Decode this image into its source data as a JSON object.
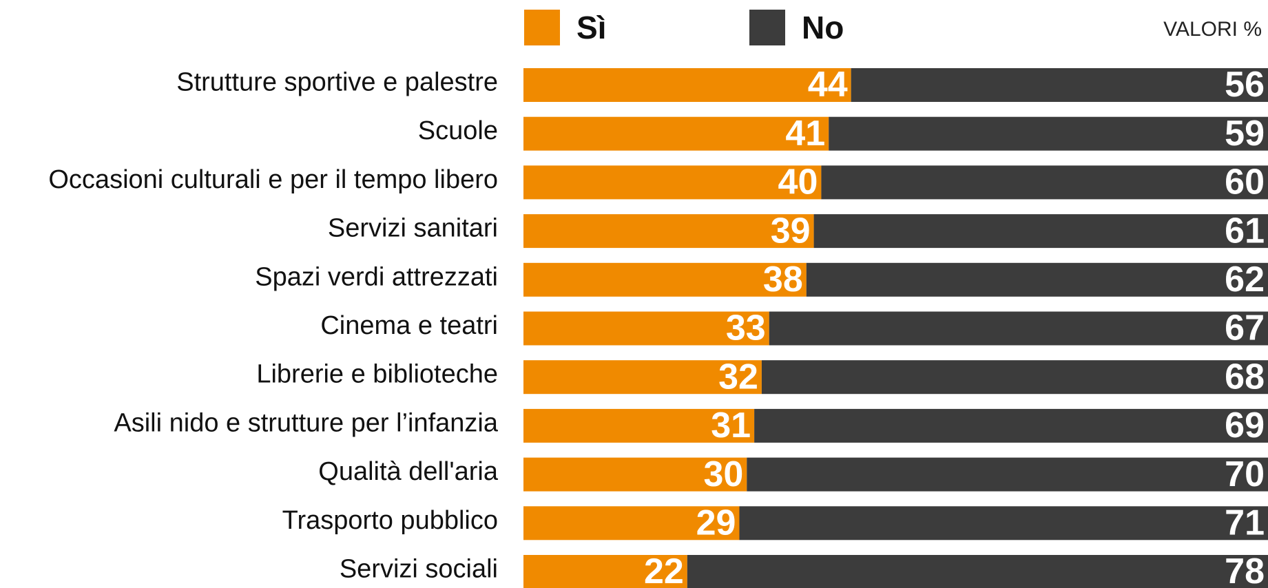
{
  "chart_data": {
    "type": "stacked-bar-horizontal",
    "note": "VALORI %",
    "categories": [
      "Strutture sportive e palestre",
      "Scuole",
      "Occasioni culturali e per il tempo libero",
      "Servizi sanitari",
      "Spazi verdi attrezzati",
      "Cinema e teatri",
      "Librerie e biblioteche",
      "Asili nido e strutture per l’infanzia",
      "Qualità dell'aria",
      "Trasporto pubblico",
      "Servizi sociali"
    ],
    "series": [
      {
        "name": "Sì",
        "color": "#f08a00",
        "values": [
          44,
          41,
          40,
          39,
          38,
          33,
          32,
          31,
          30,
          29,
          22
        ]
      },
      {
        "name": "No",
        "color": "#3c3c3c",
        "values": [
          56,
          59,
          60,
          61,
          62,
          67,
          68,
          69,
          70,
          71,
          78
        ]
      }
    ],
    "xlim": [
      0,
      100
    ],
    "legend": "top"
  }
}
